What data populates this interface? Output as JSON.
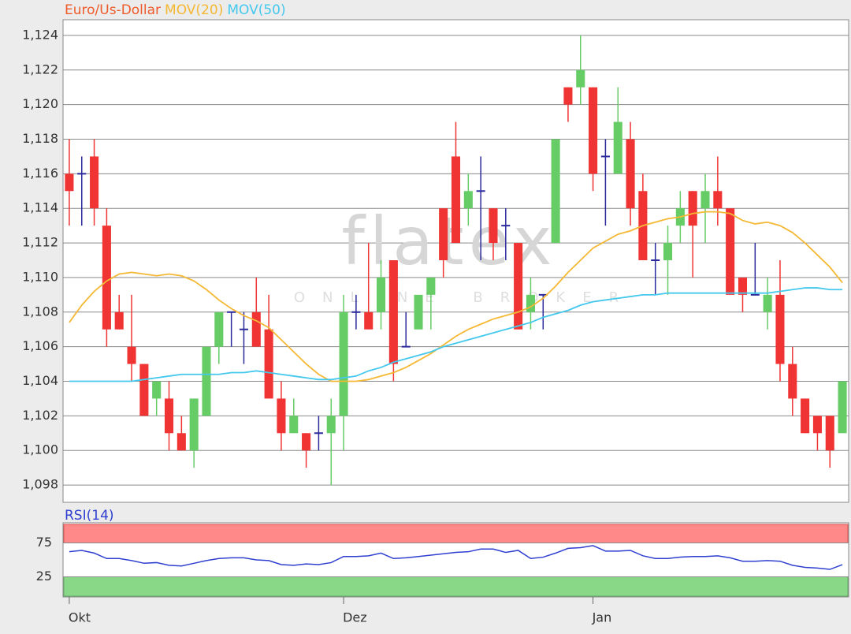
{
  "chart_data": [
    {
      "type": "candlestick",
      "title": "Euro/Us-Dollar",
      "title_color": "#ee5a2a",
      "categories": [
        "Okt",
        null,
        null,
        null,
        null,
        null,
        null,
        null,
        null,
        null,
        null,
        null,
        null,
        null,
        null,
        null,
        null,
        null,
        null,
        null,
        null,
        null,
        "Dez",
        null,
        null,
        null,
        null,
        null,
        null,
        null,
        null,
        null,
        null,
        null,
        null,
        null,
        null,
        null,
        null,
        null,
        null,
        null,
        "Jan",
        null,
        null,
        null,
        null,
        null,
        null,
        null,
        null,
        null,
        null,
        null,
        null,
        null,
        null,
        null,
        null,
        null,
        null,
        null,
        null
      ],
      "open": [
        1.116,
        1.116,
        1.117,
        1.113,
        1.108,
        1.106,
        1.105,
        1.103,
        1.103,
        1.101,
        1.1,
        1.102,
        1.106,
        1.108,
        1.107,
        1.108,
        1.107,
        1.103,
        1.101,
        1.101,
        1.101,
        1.101,
        1.102,
        1.108,
        1.108,
        1.108,
        1.111,
        1.106,
        1.107,
        1.109,
        1.114,
        1.117,
        1.114,
        1.115,
        1.114,
        1.113,
        1.112,
        1.108,
        1.109,
        1.112,
        1.121,
        1.121,
        1.121,
        1.117,
        1.116,
        1.118,
        1.115,
        1.111,
        1.111,
        1.113,
        1.115,
        1.114,
        1.115,
        1.114,
        1.11,
        1.109,
        1.108,
        1.109,
        1.105,
        1.103,
        1.102,
        1.102,
        1.101
      ],
      "high": [
        1.118,
        1.117,
        1.118,
        1.114,
        1.109,
        1.109,
        1.105,
        1.104,
        1.104,
        1.102,
        1.103,
        1.106,
        1.108,
        1.108,
        1.108,
        1.11,
        1.109,
        1.104,
        1.103,
        1.101,
        1.102,
        1.103,
        1.109,
        1.109,
        1.112,
        1.111,
        1.111,
        1.108,
        1.109,
        1.11,
        1.114,
        1.119,
        1.116,
        1.117,
        1.114,
        1.114,
        1.112,
        1.11,
        1.109,
        1.118,
        1.121,
        1.124,
        1.121,
        1.118,
        1.121,
        1.119,
        1.116,
        1.112,
        1.113,
        1.115,
        1.115,
        1.116,
        1.117,
        1.114,
        1.11,
        1.112,
        1.11,
        1.111,
        1.106,
        1.103,
        1.102,
        1.102,
        1.104
      ],
      "low": [
        1.113,
        1.113,
        1.113,
        1.106,
        1.107,
        1.104,
        1.102,
        1.102,
        1.1,
        1.1,
        1.099,
        1.102,
        1.105,
        1.106,
        1.105,
        1.106,
        1.103,
        1.1,
        1.101,
        1.099,
        1.1,
        1.098,
        1.1,
        1.107,
        1.107,
        1.107,
        1.104,
        1.106,
        1.107,
        1.107,
        1.11,
        1.112,
        1.113,
        1.111,
        1.111,
        1.111,
        1.107,
        1.107,
        1.107,
        1.112,
        1.119,
        1.12,
        1.115,
        1.113,
        1.116,
        1.113,
        1.111,
        1.109,
        1.109,
        1.112,
        1.11,
        1.112,
        1.113,
        1.109,
        1.108,
        1.109,
        1.107,
        1.104,
        1.102,
        1.101,
        1.1,
        1.099,
        1.101
      ],
      "close": [
        1.115,
        1.116,
        1.114,
        1.107,
        1.107,
        1.105,
        1.102,
        1.104,
        1.101,
        1.1,
        1.103,
        1.106,
        1.108,
        1.108,
        1.107,
        1.106,
        1.103,
        1.101,
        1.102,
        1.1,
        1.101,
        1.102,
        1.108,
        1.108,
        1.107,
        1.11,
        1.105,
        1.106,
        1.109,
        1.11,
        1.111,
        1.112,
        1.115,
        1.115,
        1.112,
        1.113,
        1.107,
        1.109,
        1.109,
        1.118,
        1.12,
        1.122,
        1.116,
        1.117,
        1.119,
        1.114,
        1.111,
        1.111,
        1.112,
        1.114,
        1.113,
        1.115,
        1.114,
        1.109,
        1.109,
        1.109,
        1.109,
        1.105,
        1.103,
        1.101,
        1.101,
        1.1,
        1.104
      ],
      "up_color": "#66cc66",
      "down_color": "#f03434",
      "doji_color": "#2a2a9c",
      "series": [
        {
          "name": "MOV(20)",
          "color": "#f5b834",
          "values": [
            1.1074,
            1.1084,
            1.1092,
            1.1098,
            1.1102,
            1.1103,
            1.1102,
            1.1101,
            1.1102,
            1.1101,
            1.1098,
            1.1093,
            1.1087,
            1.1082,
            1.1078,
            1.1075,
            1.1071,
            1.1064,
            1.1057,
            1.105,
            1.1044,
            1.104,
            1.104,
            1.104,
            1.1041,
            1.1043,
            1.1045,
            1.1048,
            1.1052,
            1.1056,
            1.1061,
            1.1066,
            1.107,
            1.1073,
            1.1076,
            1.1078,
            1.108,
            1.1083,
            1.1088,
            1.1095,
            1.1103,
            1.111,
            1.1117,
            1.1121,
            1.1125,
            1.1127,
            1.113,
            1.1132,
            1.1134,
            1.1135,
            1.1137,
            1.1138,
            1.1138,
            1.1137,
            1.1133,
            1.1131,
            1.1132,
            1.113,
            1.1126,
            1.112,
            1.1113,
            1.1106,
            1.1097
          ]
        },
        {
          "name": "MOV(50)",
          "color": "#44c8ee",
          "values": [
            1.104,
            1.104,
            1.104,
            1.104,
            1.104,
            1.104,
            1.1041,
            1.1042,
            1.1043,
            1.1044,
            1.1044,
            1.1044,
            1.1044,
            1.1045,
            1.1045,
            1.1046,
            1.1045,
            1.1044,
            1.1043,
            1.1042,
            1.1041,
            1.1041,
            1.1042,
            1.1043,
            1.1046,
            1.1048,
            1.1051,
            1.1053,
            1.1055,
            1.1057,
            1.106,
            1.1062,
            1.1064,
            1.1066,
            1.1068,
            1.107,
            1.1072,
            1.1074,
            1.1077,
            1.1079,
            1.1081,
            1.1084,
            1.1086,
            1.1087,
            1.1088,
            1.1089,
            1.109,
            1.109,
            1.1091,
            1.1091,
            1.1091,
            1.1091,
            1.1091,
            1.1091,
            1.1091,
            1.1091,
            1.1091,
            1.1092,
            1.1093,
            1.1094,
            1.1094,
            1.1093,
            1.1093
          ]
        }
      ],
      "ylim": [
        1.097,
        1.125
      ],
      "yticks": [
        {
          "value": 1.098,
          "label": "1,098"
        },
        {
          "value": 1.1,
          "label": "1,100"
        },
        {
          "value": 1.102,
          "label": "1,102"
        },
        {
          "value": 1.104,
          "label": "1,104"
        },
        {
          "value": 1.106,
          "label": "1,106"
        },
        {
          "value": 1.108,
          "label": "1,108"
        },
        {
          "value": 1.11,
          "label": "1,110"
        },
        {
          "value": 1.112,
          "label": "1,112"
        },
        {
          "value": 1.114,
          "label": "1,114"
        },
        {
          "value": 1.116,
          "label": "1,116"
        },
        {
          "value": 1.118,
          "label": "1,118"
        },
        {
          "value": 1.12,
          "label": "1,120"
        },
        {
          "value": 1.122,
          "label": "1,122"
        },
        {
          "value": 1.124,
          "label": "1,124"
        }
      ],
      "grid": true,
      "watermark": [
        "flatex",
        "ONLINE BROKER"
      ]
    },
    {
      "type": "line",
      "title": "RSI(14)",
      "color": "#2f3fd0",
      "values": [
        62,
        64,
        60,
        52,
        52,
        49,
        45,
        46,
        42,
        41,
        45,
        49,
        52,
        53,
        53,
        50,
        49,
        43,
        42,
        44,
        43,
        46,
        55,
        55,
        56,
        60,
        52,
        53,
        55,
        57,
        59,
        61,
        62,
        66,
        66,
        61,
        64,
        52,
        54,
        60,
        67,
        68,
        71,
        63,
        63,
        64,
        56,
        52,
        52,
        54,
        55,
        55,
        56,
        53,
        48,
        48,
        49,
        48,
        42,
        39,
        38,
        36,
        43
      ],
      "ylim": [
        0,
        100
      ],
      "yticks": [
        25,
        75
      ],
      "band_colors": [
        "#88d888",
        "#ff8888"
      ]
    }
  ]
}
